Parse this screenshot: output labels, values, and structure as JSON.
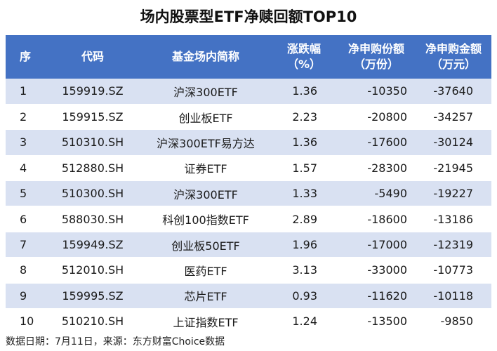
{
  "title": "场内股票型ETF净赎回额TOP10",
  "headers": {
    "idx": "序",
    "code": "代码",
    "name": "基金场内简称",
    "chg_line1": "涨跌幅",
    "chg_line2": "（%）",
    "shares_line1": "净申购份额",
    "shares_line2": "（万份）",
    "amount_line1": "净申购金额",
    "amount_line2": "（万元）"
  },
  "rows": [
    {
      "idx": "1",
      "code": "159919.SZ",
      "name": "沪深300ETF",
      "chg": "1.36",
      "shares": "-10350",
      "amount": "-37640"
    },
    {
      "idx": "2",
      "code": "159915.SZ",
      "name": "创业板ETF",
      "chg": "2.23",
      "shares": "-20800",
      "amount": "-34257"
    },
    {
      "idx": "3",
      "code": "510310.SH",
      "name": "沪深300ETF易方达",
      "chg": "1.36",
      "shares": "-17600",
      "amount": "-30124"
    },
    {
      "idx": "4",
      "code": "512880.SH",
      "name": "证券ETF",
      "chg": "1.57",
      "shares": "-28300",
      "amount": "-21945"
    },
    {
      "idx": "5",
      "code": "510300.SH",
      "name": "沪深300ETF",
      "chg": "1.33",
      "shares": "-5490",
      "amount": "-19227"
    },
    {
      "idx": "6",
      "code": "588030.SH",
      "name": "科创100指数ETF",
      "chg": "2.89",
      "shares": "-18600",
      "amount": "-13186"
    },
    {
      "idx": "7",
      "code": "159949.SZ",
      "name": "创业板50ETF",
      "chg": "1.96",
      "shares": "-17000",
      "amount": "-12319"
    },
    {
      "idx": "8",
      "code": "512010.SH",
      "name": "医药ETF",
      "chg": "3.13",
      "shares": "-33000",
      "amount": "-10773"
    },
    {
      "idx": "9",
      "code": "159995.SZ",
      "name": "芯片ETF",
      "chg": "0.93",
      "shares": "-11620",
      "amount": "-10118"
    },
    {
      "idx": "10",
      "code": "510210.SH",
      "name": "上证指数ETF",
      "chg": "1.24",
      "shares": "-13500",
      "amount": "-9850"
    }
  ],
  "footer": "数据日期：7月11日，来源：东方财富Choice数据",
  "colors": {
    "header_bg": "#4472c4",
    "stripe": "#d9e1f2",
    "header_text": "#ffffff"
  }
}
